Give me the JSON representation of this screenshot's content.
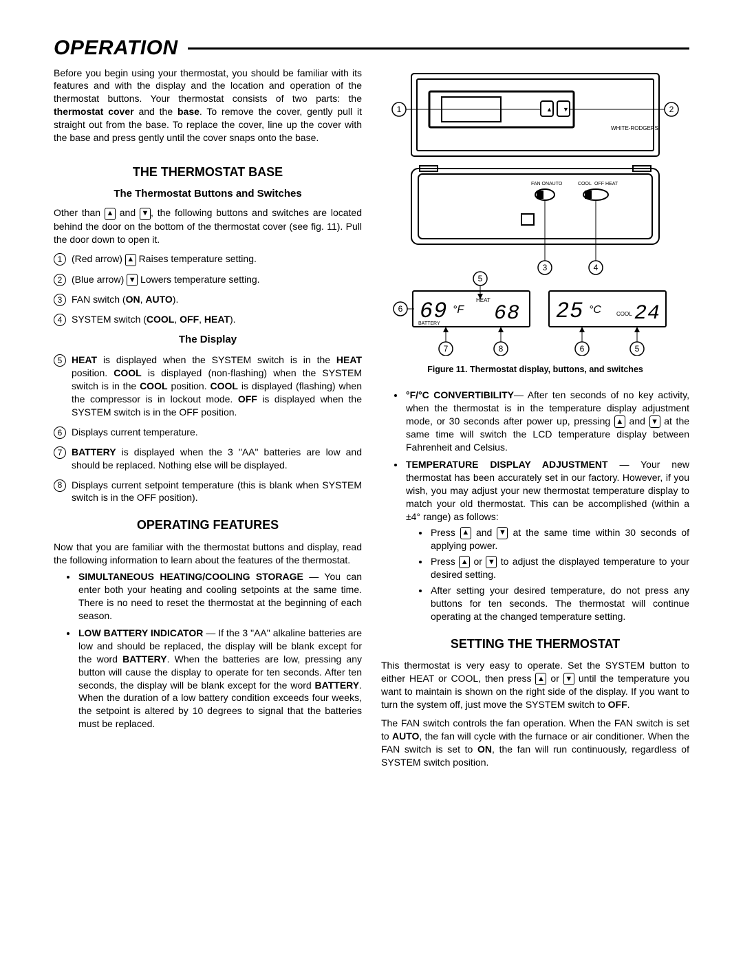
{
  "title": "OPERATION",
  "intro_html": "Before you begin using your thermostat, you should be familiar with its features and with the display and the location and operation of the thermostat buttons. Your thermostat consists of two parts: the <b>thermostat cover</b> and the <b>base</b>. To remove the cover, gently pull it straight out from the base. To replace the cover, line up the cover with the base and press gently until the cover snaps onto the base.",
  "base_heading": "THE THERMOSTAT BASE",
  "buttons_heading": "The Thermostat Buttons and Switches",
  "buttons_intro_pre": "Other than ",
  "buttons_intro_mid": " and ",
  "buttons_intro_post": ", the following buttons and switches are located behind the door on the bottom of the thermostat cover (see fig. 11). Pull the door down to open it.",
  "items": [
    {
      "n": "1",
      "pre": "(Red arrow) ",
      "arrow": "up",
      "post": " Raises temperature setting."
    },
    {
      "n": "2",
      "pre": "(Blue arrow) ",
      "arrow": "down",
      "post": " Lowers temperature setting."
    },
    {
      "n": "3",
      "html": "FAN switch (<b>ON</b>, <b>AUTO</b>)."
    },
    {
      "n": "4",
      "html": "SYSTEM switch (<b>COOL</b>, <b>OFF</b>, <b>HEAT</b>)."
    }
  ],
  "display_heading": "The Display",
  "display_items": [
    {
      "n": "5",
      "html": "<b>HEAT</b> is displayed when the SYSTEM switch is in the <b>HEAT</b> position. <b>COOL</b> is displayed (non-flashing) when the SYSTEM switch is in the <b>COOL</b> position. <b>COOL</b> is displayed (flashing) when the compressor is in lockout mode. <b>OFF</b> is displayed when the SYSTEM switch is in the OFF position."
    },
    {
      "n": "6",
      "html": "Displays current temperature."
    },
    {
      "n": "7",
      "html": "<b>BATTERY</b> is displayed when the 3 \"AA\" batteries are low and should be replaced. Nothing else will be displayed."
    },
    {
      "n": "8",
      "html": "Displays current setpoint temperature (this is blank when SYSTEM switch is in the OFF position)."
    }
  ],
  "opfeat_heading": "OPERATING FEATURES",
  "opfeat_intro": "Now that you are familiar with the thermostat buttons and display, read the following information to learn about the features of the thermostat.",
  "opfeat_bullets": [
    "<b>SIMULTANEOUS HEATING/COOLING STORAGE</b> — You can enter both your heating and cooling setpoints at the same time. There is no need to reset the thermostat at the beginning of each season.",
    "<b>LOW BATTERY INDICATOR</b> — If the 3 \"AA\" alkaline batteries are low and should be replaced, the display will be blank except for the word <b>BATTERY</b>. When the batteries are low, pressing any button will cause the display to operate for ten seconds. After ten seconds, the display will be blank except for the word <b>BATTERY</b>. When the duration of a low battery condition exceeds four weeks, the setpoint is altered by 10 degrees to signal that the batteries must be replaced."
  ],
  "fig": {
    "caption": "Figure 11. Thermostat display, buttons, and switches",
    "brand": "WHITE-RODGERS",
    "fan_labels": [
      "FAN ON",
      "AUTO"
    ],
    "sys_labels": [
      "COOL",
      "OFF",
      "HEAT"
    ],
    "callouts_top": [
      "1",
      "2",
      "3",
      "4"
    ],
    "lcd_f": {
      "temp": "69",
      "unit": "°F",
      "mode": "HEAT",
      "set": "68",
      "battery": "BATTERY",
      "callouts": [
        "5",
        "6",
        "7",
        "8"
      ]
    },
    "lcd_c": {
      "temp": "25",
      "unit": "°C",
      "mode": "COOL",
      "set": "24",
      "callouts": [
        "6",
        "5"
      ]
    },
    "colors": {
      "line": "#000000",
      "bg": "#ffffff"
    }
  },
  "right_bullets": [
    {
      "pre": "<b>°F/°C CONVERTIBILITY</b>— After ten seconds of no key activity, when the thermostat is in the temperature display adjustment mode, or 30 seconds after power up, pressing ",
      "mid1": " and ",
      "mid2": " at the same time will switch the LCD temperature display between Fahrenheit and Celsius.",
      "arrows": [
        "up",
        "down"
      ]
    },
    {
      "pre": "<b>TEMPERATURE DISPLAY ADJUSTMENT</b> — Your new thermostat has been accurately set in our factory. However, if you wish, you may adjust your new thermostat temperature display to match your old thermostat. This can be accomplished (within a ±4° range) as follows:"
    }
  ],
  "temp_adj_steps": [
    {
      "pre": "Press ",
      "mid": " and ",
      "post": " at the same time within 30 seconds of applying power.",
      "arrows": [
        "up",
        "down"
      ]
    },
    {
      "pre": "Press ",
      "mid": " or ",
      "post": " to adjust the displayed temperature to your desired setting.",
      "arrows": [
        "up",
        "down"
      ]
    },
    {
      "text": "After setting your desired temperature, do not press any buttons for ten seconds. The thermostat will continue operating at the changed temperature setting."
    }
  ],
  "setting_heading": "SETTING THE THERMOSTAT",
  "setting_p1": {
    "pre": "This thermostat is very easy to operate. Set the SYSTEM button to either HEAT or COOL, then press ",
    "mid": " or ",
    "post": " until the temperature you want to maintain is shown on the right side of the display. If you want to turn the system off, just move the SYSTEM switch to <b>OFF</b>.",
    "arrows": [
      "up",
      "down"
    ]
  },
  "setting_p2": "The FAN switch controls the fan operation. When the FAN switch is set to <b>AUTO</b>, the fan will cycle with the furnace or air conditioner. When the FAN switch is set to <b>ON</b>, the fan will run continuously, regardless of SYSTEM switch position."
}
